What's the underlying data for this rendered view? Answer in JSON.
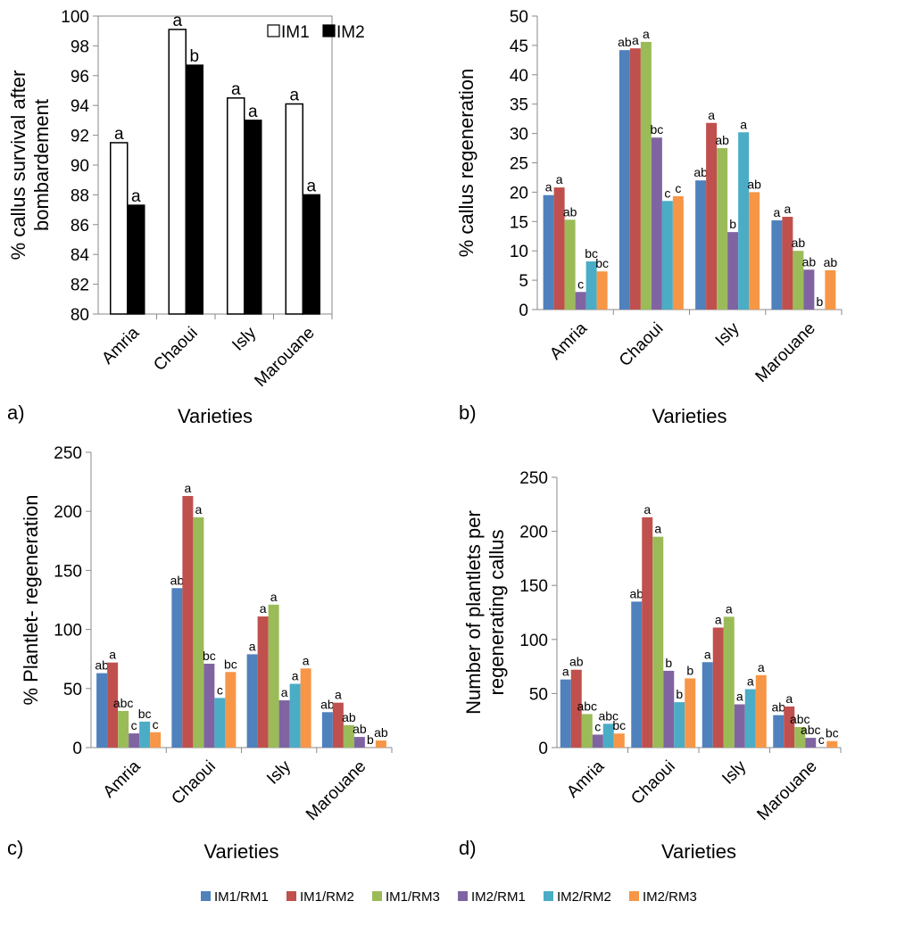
{
  "colors": {
    "IM1/RM1": "#4F81BD",
    "IM1/RM2": "#C0504D",
    "IM1/RM3": "#9BBB59",
    "IM2/RM1": "#8064A2",
    "IM2/RM2": "#4BACC6",
    "IM2/RM3": "#F79646",
    "IM1": "#ffffff",
    "IM2": "#000000"
  },
  "legend": [
    "IM1/RM1",
    "IM1/RM2",
    "IM1/RM3",
    "IM2/RM1",
    "IM2/RM2",
    "IM2/RM3"
  ],
  "chart_data": [
    {
      "panel": "a)",
      "type": "bar",
      "xlabel": "Varieties",
      "ylabel": "% callus survival after bombardement",
      "ylim": [
        80,
        100
      ],
      "yticks": [
        80,
        82,
        84,
        86,
        88,
        90,
        92,
        94,
        96,
        98,
        100
      ],
      "categories": [
        "Amria",
        "Chaoui",
        "Isly",
        "Marouane"
      ],
      "legend_position": "top-right",
      "series": [
        {
          "name": "IM1",
          "values": [
            91.5,
            99.1,
            94.5,
            94.1
          ],
          "labels": [
            "a",
            "a",
            "a",
            "a"
          ]
        },
        {
          "name": "IM2",
          "values": [
            87.3,
            96.7,
            93.0,
            88.0
          ],
          "labels": [
            "a",
            "b",
            "a",
            "a"
          ]
        }
      ]
    },
    {
      "panel": "b)",
      "type": "bar",
      "xlabel": "Varieties",
      "ylabel": "% callus regeneration",
      "ylim": [
        0,
        50
      ],
      "yticks": [
        0,
        5,
        10,
        15,
        20,
        25,
        30,
        35,
        40,
        45,
        50
      ],
      "categories": [
        "Amria",
        "Chaoui",
        "Isly",
        "Marouane"
      ],
      "series": [
        {
          "name": "IM1/RM1",
          "values": [
            19.5,
            44.2,
            22.0,
            15.2
          ],
          "labels": [
            "a",
            "ab",
            "ab",
            "a"
          ]
        },
        {
          "name": "IM1/RM2",
          "values": [
            20.8,
            44.5,
            31.8,
            15.8
          ],
          "labels": [
            "a",
            "a",
            "a",
            "a"
          ]
        },
        {
          "name": "IM1/RM3",
          "values": [
            15.3,
            45.6,
            27.5,
            10.0
          ],
          "labels": [
            "ab",
            "a",
            "ab",
            "ab"
          ]
        },
        {
          "name": "IM2/RM1",
          "values": [
            3.0,
            29.3,
            13.2,
            6.8
          ],
          "labels": [
            "c",
            "bc",
            "b",
            "ab"
          ]
        },
        {
          "name": "IM2/RM2",
          "values": [
            8.2,
            18.5,
            30.2,
            0
          ],
          "labels": [
            "bc",
            "c",
            "a",
            "b"
          ]
        },
        {
          "name": "IM2/RM3",
          "values": [
            6.5,
            19.3,
            20.0,
            6.7
          ],
          "labels": [
            "bc",
            "c",
            "ab",
            "ab"
          ]
        }
      ]
    },
    {
      "panel": "c)",
      "type": "bar",
      "xlabel": "Varieties",
      "ylabel": "% Plantlet- regeneration",
      "ylim": [
        0,
        250
      ],
      "yticks": [
        0,
        50,
        100,
        150,
        200,
        250
      ],
      "categories": [
        "Amria",
        "Chaoui",
        "Isly",
        "Marouane"
      ],
      "series": [
        {
          "name": "IM1/RM1",
          "values": [
            63,
            135,
            79,
            30
          ],
          "labels": [
            "ab",
            "ab",
            "a",
            "ab"
          ]
        },
        {
          "name": "IM1/RM2",
          "values": [
            72,
            213,
            111,
            38
          ],
          "labels": [
            "a",
            "a",
            "a",
            "a"
          ]
        },
        {
          "name": "IM1/RM3",
          "values": [
            31,
            195,
            121,
            19
          ],
          "labels": [
            "abc",
            "a",
            "a",
            "ab"
          ]
        },
        {
          "name": "IM2/RM1",
          "values": [
            12,
            71,
            40,
            9
          ],
          "labels": [
            "c",
            "bc",
            "a",
            "ab"
          ]
        },
        {
          "name": "IM2/RM2",
          "values": [
            22,
            42,
            54,
            0
          ],
          "labels": [
            "bc",
            "c",
            "a",
            "b"
          ]
        },
        {
          "name": "IM2/RM3",
          "values": [
            13,
            64,
            67,
            6
          ],
          "labels": [
            "c",
            "bc",
            "a",
            "ab"
          ]
        }
      ]
    },
    {
      "panel": "d)",
      "type": "bar",
      "xlabel": "Varieties",
      "ylabel": "Number of plantlets per regenerating callus",
      "ylim": [
        0,
        250
      ],
      "yticks": [
        0,
        50,
        100,
        150,
        200,
        250
      ],
      "categories": [
        "Amria",
        "Chaoui",
        "Isly",
        "Marouane"
      ],
      "series": [
        {
          "name": "IM1/RM1",
          "values": [
            63,
            135,
            79,
            30
          ],
          "labels": [
            "a",
            "ab",
            "a",
            "ab"
          ]
        },
        {
          "name": "IM1/RM2",
          "values": [
            72,
            213,
            111,
            38
          ],
          "labels": [
            "ab",
            "a",
            "a",
            "a"
          ]
        },
        {
          "name": "IM1/RM3",
          "values": [
            31,
            195,
            121,
            19
          ],
          "labels": [
            "abc",
            "a",
            "a",
            "abc"
          ]
        },
        {
          "name": "IM2/RM1",
          "values": [
            12,
            71,
            40,
            9
          ],
          "labels": [
            "c",
            "b",
            "a",
            "abc"
          ]
        },
        {
          "name": "IM2/RM2",
          "values": [
            22,
            42,
            54,
            0
          ],
          "labels": [
            "abc",
            "b",
            "a",
            "c"
          ]
        },
        {
          "name": "IM2/RM3",
          "values": [
            13,
            64,
            67,
            6
          ],
          "labels": [
            "bc",
            "b",
            "a",
            "bc"
          ]
        }
      ]
    }
  ]
}
